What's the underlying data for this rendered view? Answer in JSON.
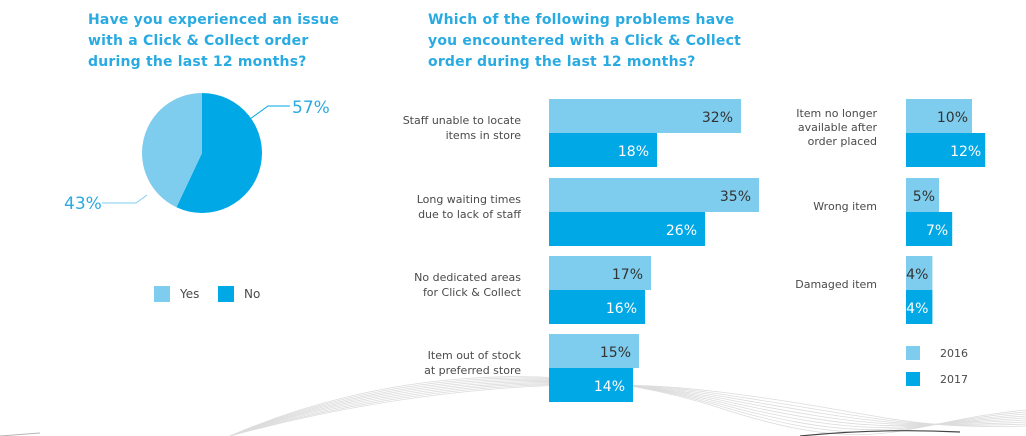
{
  "pie_question": {
    "lines": [
      "Have you experienced an issue",
      "with a Click & Collect order",
      "during the last 12 months?"
    ]
  },
  "bar_question": {
    "lines": [
      "Which of the following problems have",
      "you encountered with a Click & Collect",
      "order during the last 12 months?"
    ]
  },
  "colors": {
    "accent_text": "#29abe2",
    "light_blue": "#7fcdee",
    "dark_blue": "#00a8e6",
    "label_text": "#4a4a4a",
    "value_text": "#333333",
    "inner_value_text": "#ffffff",
    "pie_label": "#2aaae0",
    "swoosh": "#dcdcdc"
  },
  "chart_data": [
    {
      "type": "pie",
      "slices": [
        {
          "label": "Yes",
          "value": 43,
          "display": "43%",
          "color": "#7fcdee"
        },
        {
          "label": "No",
          "value": 57,
          "display": "57%",
          "color": "#00a8e6"
        }
      ],
      "legend": [
        "Yes",
        "No"
      ],
      "legend_placement": "bottom"
    },
    {
      "type": "bar",
      "orientation": "horizontal",
      "series_names": [
        "2016",
        "2017"
      ],
      "categories": [
        {
          "lines": [
            "Staff unable to locate",
            "items in store"
          ],
          "values": [
            32,
            18
          ],
          "labels": [
            "32%",
            "18%"
          ]
        },
        {
          "lines": [
            "Long waiting times",
            "due to lack of staff"
          ],
          "values": [
            35,
            26
          ],
          "labels": [
            "35%",
            "26%"
          ]
        },
        {
          "lines": [
            "No dedicated areas",
            "for Click & Collect"
          ],
          "values": [
            17,
            16
          ],
          "labels": [
            "17%",
            "16%"
          ]
        },
        {
          "lines": [
            "Item out of stock",
            "at preferred store"
          ],
          "values": [
            15,
            14
          ],
          "labels": [
            "15%",
            "14%"
          ]
        }
      ]
    },
    {
      "type": "bar",
      "orientation": "horizontal",
      "series_names": [
        "2016",
        "2017"
      ],
      "categories": [
        {
          "lines": [
            "Item no longer",
            "available after",
            "order placed"
          ],
          "values": [
            10,
            12
          ],
          "labels": [
            "10%",
            "12%"
          ]
        },
        {
          "lines": [
            "Wrong item"
          ],
          "values": [
            5,
            7
          ],
          "labels": [
            "5%",
            "7%"
          ]
        },
        {
          "lines": [
            "Damaged item"
          ],
          "values": [
            4,
            4
          ],
          "labels": [
            "4%",
            "4%"
          ]
        }
      ],
      "legend": [
        "2016",
        "2017"
      ],
      "legend_placement": "bottom-right"
    }
  ]
}
